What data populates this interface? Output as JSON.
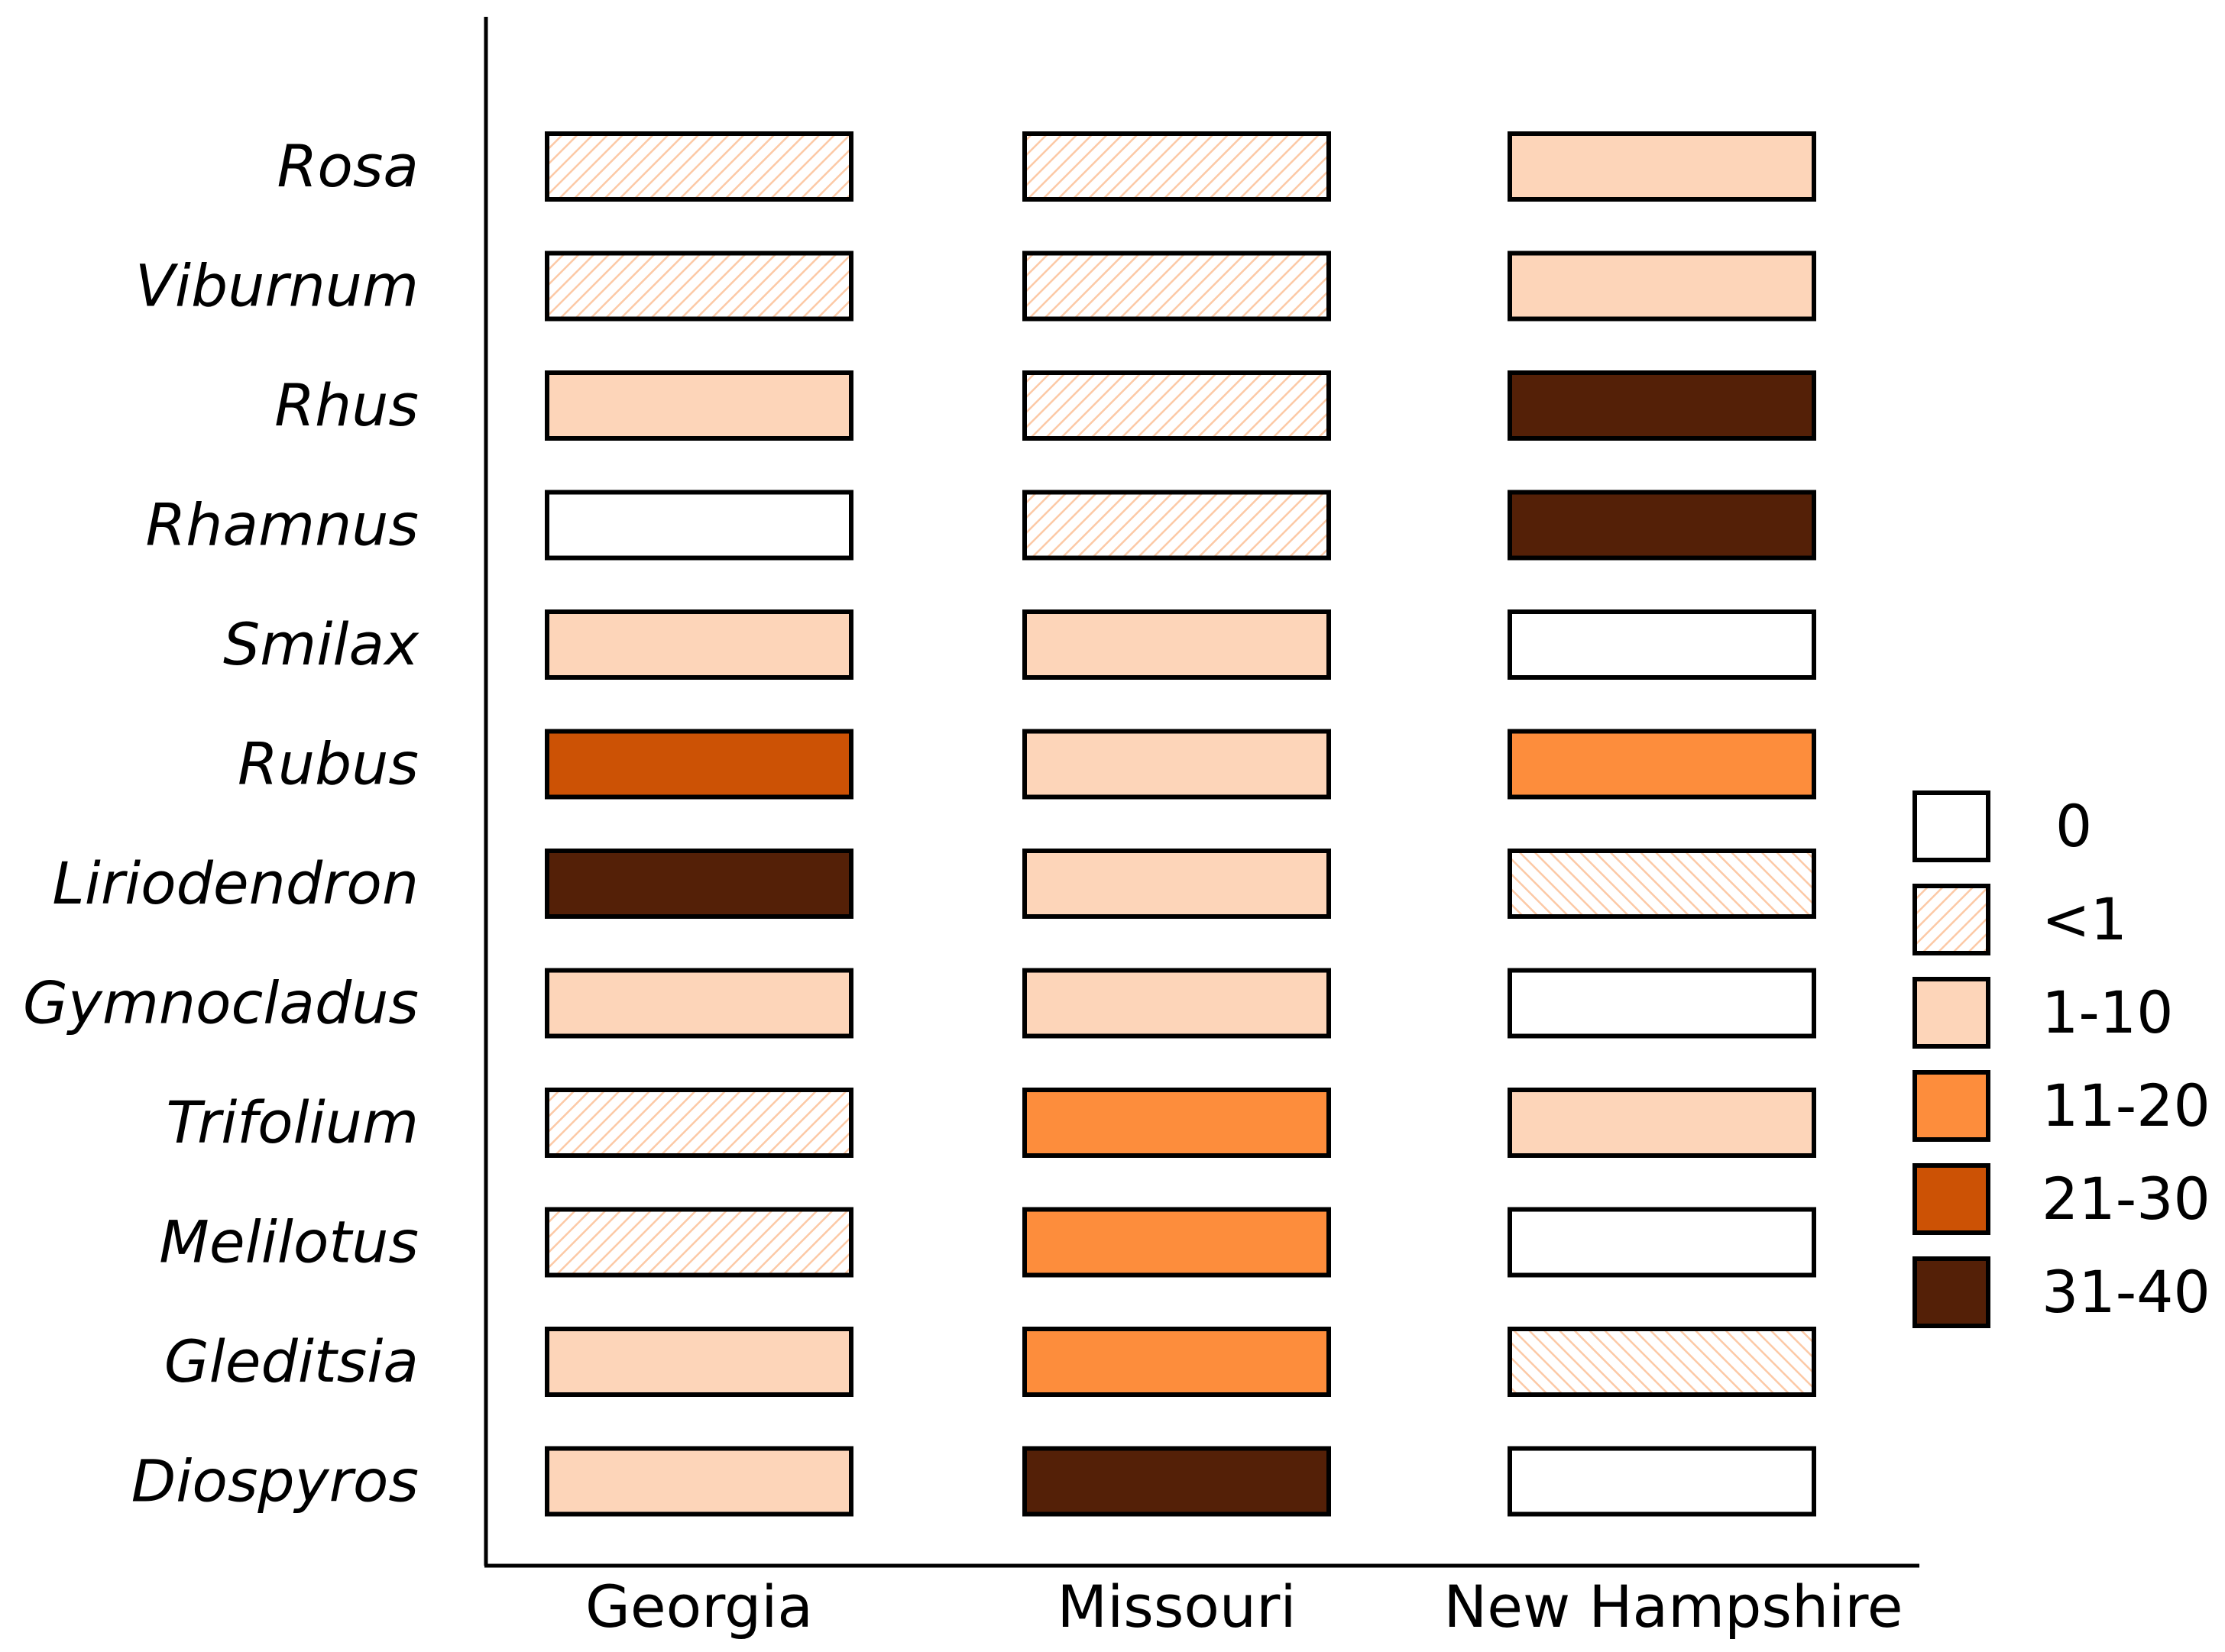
{
  "chart_data": {
    "type": "heatmap",
    "columns": [
      "Georgia",
      "Missouri",
      "New Hampshire"
    ],
    "rows": [
      "Rosa",
      "Viburnum",
      "Rhus",
      "Rhamnus",
      "Smilax",
      "Rubus",
      "Liriodendron",
      "Gymnocladus",
      "Trifolium",
      "Melilotus",
      "Gleditsia",
      "Diospyros"
    ],
    "values": [
      [
        "<1",
        "<1",
        "1-10"
      ],
      [
        "<1",
        "<1",
        "1-10"
      ],
      [
        "1-10",
        "<1",
        "31-40"
      ],
      [
        "0",
        "<1",
        "31-40"
      ],
      [
        "1-10",
        "1-10",
        "0"
      ],
      [
        "21-30",
        "1-10",
        "11-20"
      ],
      [
        "31-40",
        "1-10",
        "<1"
      ],
      [
        "1-10",
        "1-10",
        "0"
      ],
      [
        "<1",
        "11-20",
        "1-10"
      ],
      [
        "<1",
        "11-20",
        "0"
      ],
      [
        "1-10",
        "11-20",
        "<1"
      ],
      [
        "1-10",
        "31-40",
        "0"
      ]
    ],
    "legend": {
      "placement": "right",
      "items": [
        {
          "label": "0",
          "color": "#ffffff",
          "pattern": "none"
        },
        {
          "label": "<1",
          "color": "#fcd3b8",
          "pattern": "hatch"
        },
        {
          "label": "1-10",
          "color": "#fdd5b9",
          "pattern": "none"
        },
        {
          "label": "11-20",
          "color": "#fd8d3c",
          "pattern": "none"
        },
        {
          "label": "21-30",
          "color": "#cc5205",
          "pattern": "none"
        },
        {
          "label": "31-40",
          "color": "#542007",
          "pattern": "none"
        }
      ]
    },
    "grid": false
  }
}
